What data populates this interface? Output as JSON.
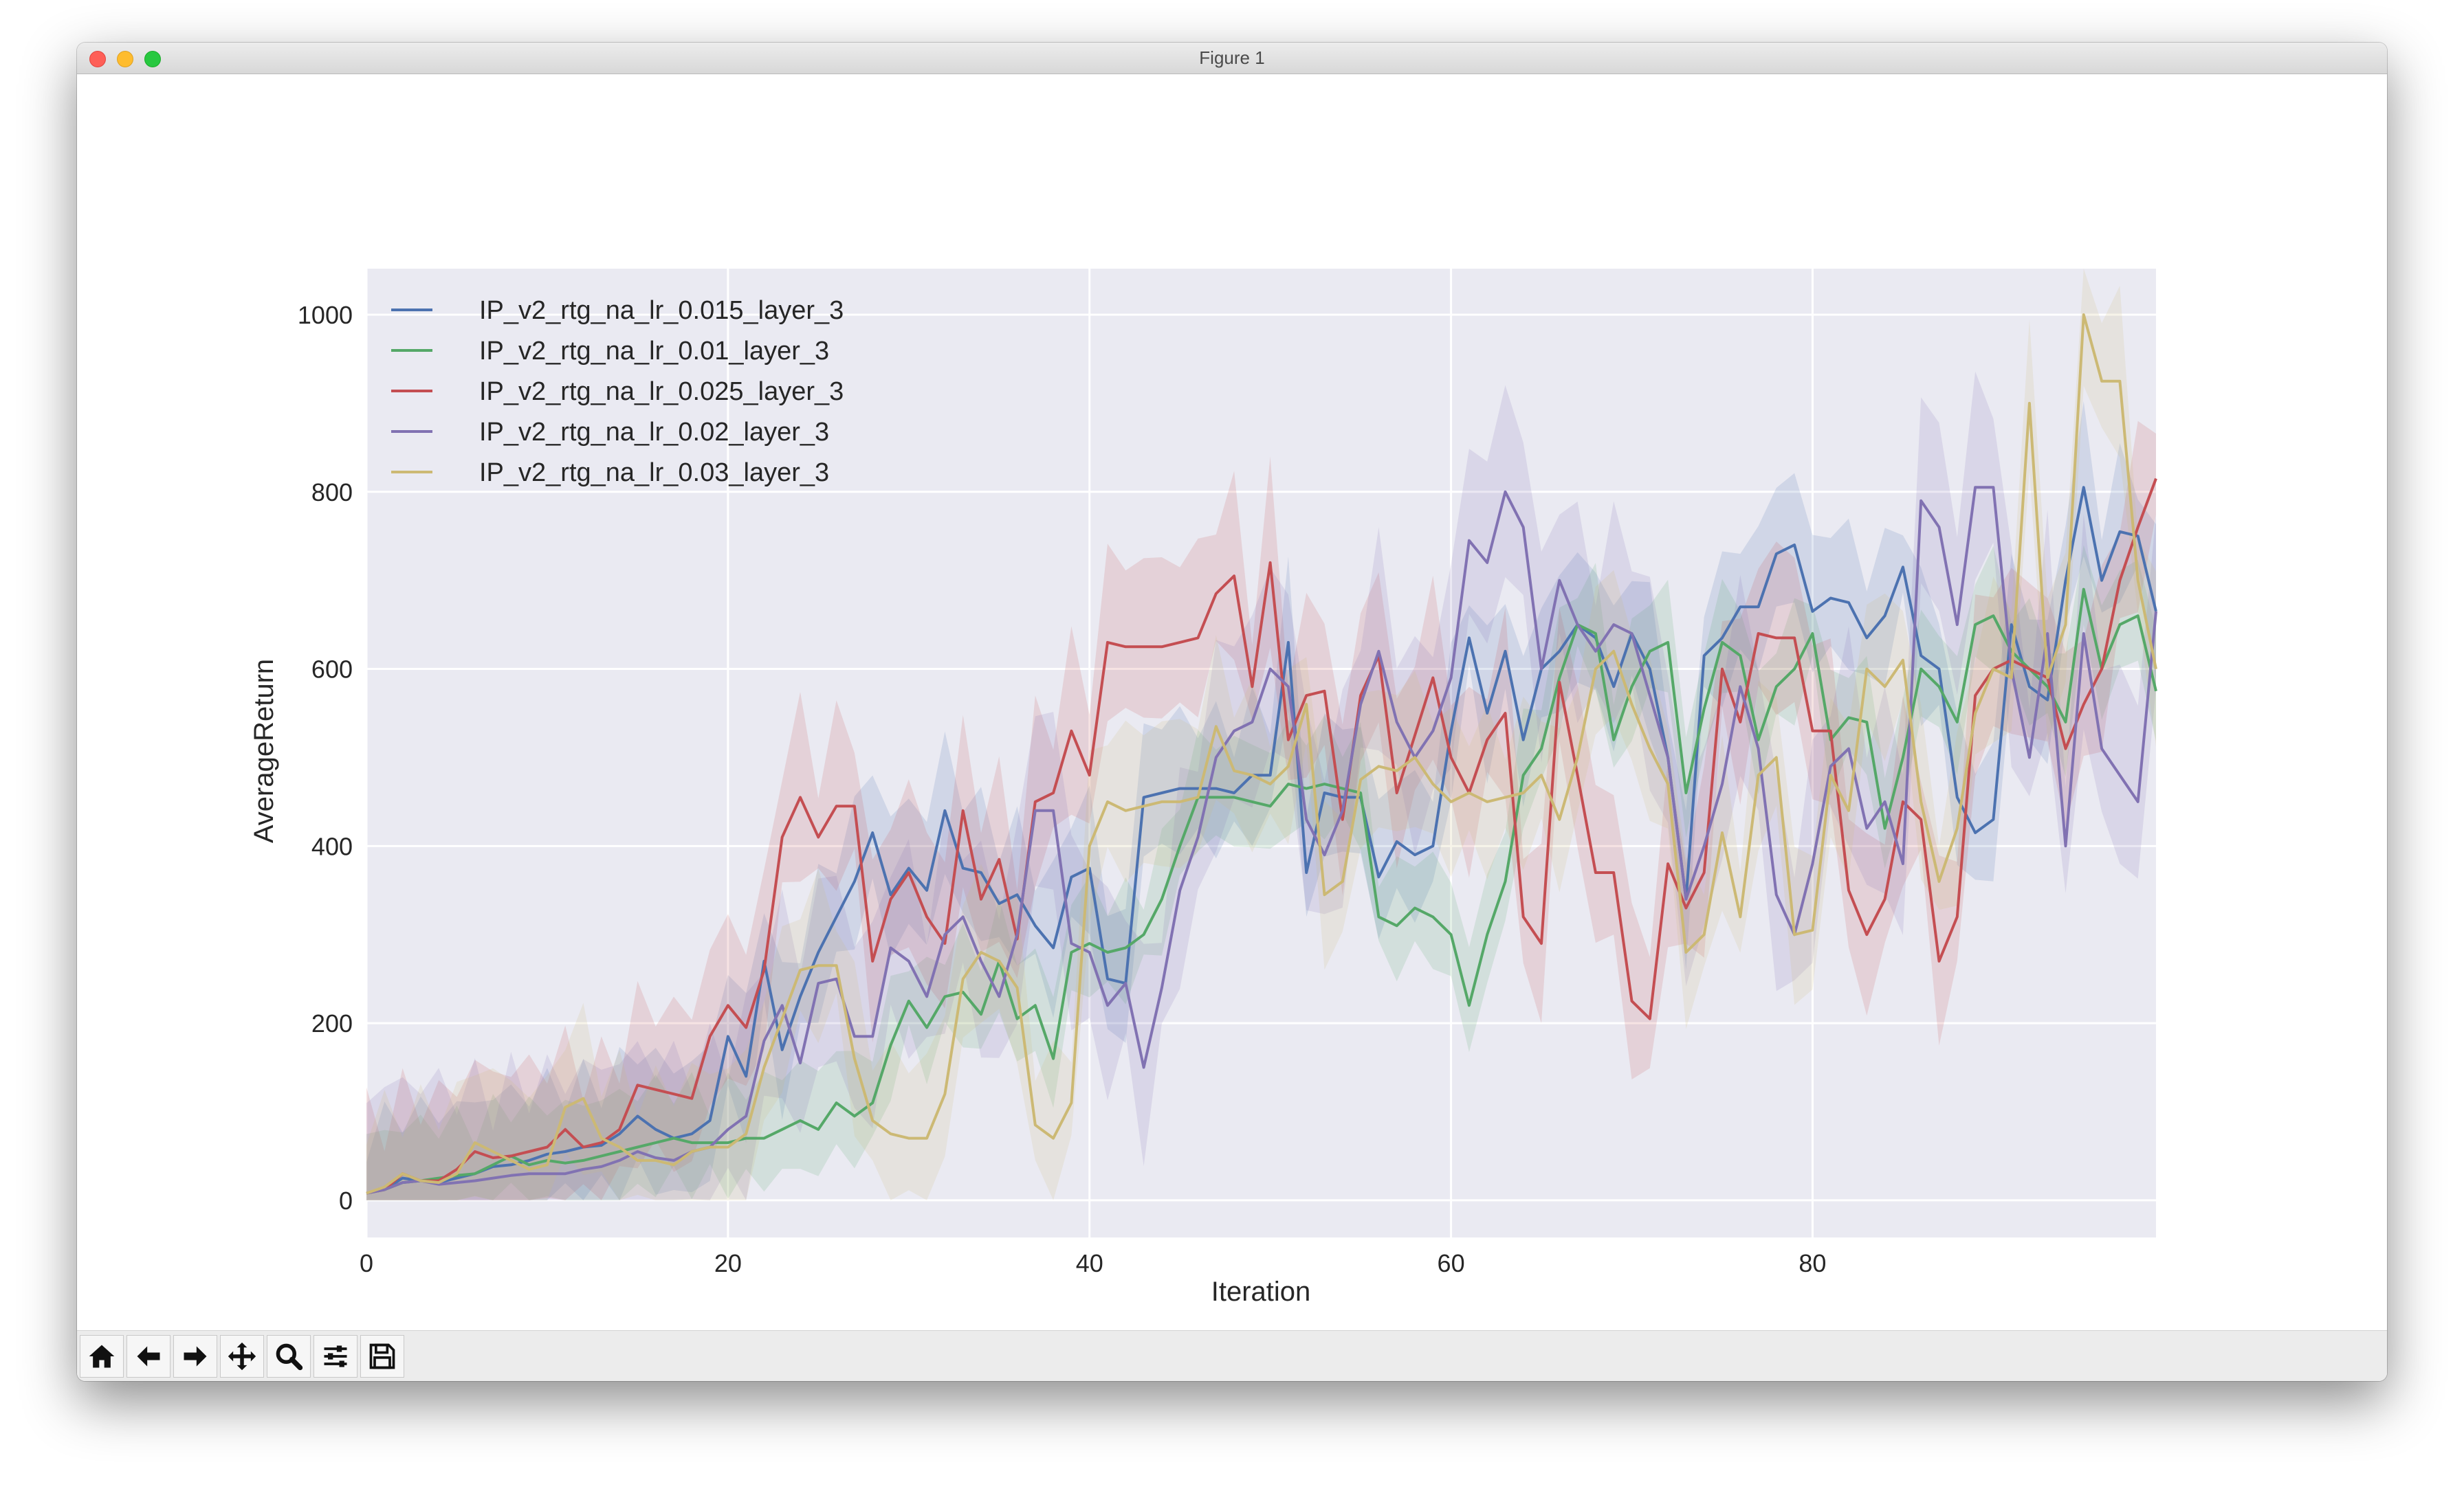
{
  "window": {
    "title": "Figure 1"
  },
  "toolbar": {
    "buttons": [
      {
        "name": "home-button",
        "icon": "home-icon"
      },
      {
        "name": "back-button",
        "icon": "arrow-left-icon"
      },
      {
        "name": "forward-button",
        "icon": "arrow-right-icon"
      },
      {
        "name": "pan-button",
        "icon": "move-icon"
      },
      {
        "name": "zoom-button",
        "icon": "magnifier-icon"
      },
      {
        "name": "configure-subplots-button",
        "icon": "sliders-icon"
      },
      {
        "name": "save-button",
        "icon": "floppy-disk-icon"
      }
    ]
  },
  "chart_data": {
    "type": "line",
    "xlabel": "Iteration",
    "ylabel": "AverageReturn",
    "xlim": [
      0,
      99
    ],
    "ylim": [
      -42,
      1052
    ],
    "xticks": [
      0,
      20,
      40,
      60,
      80
    ],
    "yticks": [
      0,
      200,
      400,
      600,
      800,
      1000
    ],
    "grid": true,
    "legend_position": "top-left",
    "shaded_band": "spread across runs (translucent band around each line)",
    "x": [
      0,
      1,
      2,
      3,
      4,
      5,
      6,
      7,
      8,
      9,
      10,
      11,
      12,
      13,
      14,
      15,
      16,
      17,
      18,
      19,
      20,
      21,
      22,
      23,
      24,
      25,
      26,
      27,
      28,
      29,
      30,
      31,
      32,
      33,
      34,
      35,
      36,
      37,
      38,
      39,
      40,
      41,
      42,
      43,
      44,
      45,
      46,
      47,
      48,
      49,
      50,
      51,
      52,
      53,
      54,
      55,
      56,
      57,
      58,
      59,
      60,
      61,
      62,
      63,
      64,
      65,
      66,
      67,
      68,
      69,
      70,
      71,
      72,
      73,
      74,
      75,
      76,
      77,
      78,
      79,
      80,
      81,
      82,
      83,
      84,
      85,
      86,
      87,
      88,
      89,
      90,
      91,
      92,
      93,
      94,
      95,
      96,
      97,
      98,
      99
    ],
    "series": [
      {
        "name": "IP_v2_rtg_na_lr_0.015_layer_3",
        "color": "#4c72b0",
        "spread": 100,
        "values": [
          8,
          12,
          25,
          22,
          20,
          25,
          30,
          38,
          40,
          45,
          52,
          55,
          60,
          62,
          75,
          95,
          80,
          70,
          75,
          90,
          185,
          140,
          270,
          170,
          230,
          280,
          320,
          360,
          415,
          345,
          375,
          350,
          440,
          375,
          370,
          335,
          345,
          310,
          285,
          365,
          375,
          250,
          245,
          455,
          460,
          465,
          465,
          465,
          460,
          480,
          480,
          630,
          370,
          460,
          455,
          455,
          365,
          405,
          390,
          400,
          530,
          635,
          550,
          620,
          520,
          600,
          620,
          650,
          635,
          580,
          640,
          600,
          500,
          340,
          615,
          635,
          670,
          670,
          730,
          740,
          665,
          680,
          675,
          635,
          660,
          715,
          615,
          600,
          455,
          415,
          430,
          650,
          580,
          565,
          700,
          805,
          700,
          755,
          750,
          665
        ]
      },
      {
        "name": "IP_v2_rtg_na_lr_0.01_layer_3",
        "color": "#55a868",
        "spread": 80,
        "values": [
          8,
          12,
          20,
          22,
          25,
          28,
          30,
          40,
          50,
          40,
          45,
          42,
          45,
          50,
          55,
          60,
          65,
          70,
          65,
          65,
          65,
          70,
          70,
          80,
          90,
          80,
          110,
          95,
          110,
          175,
          225,
          195,
          230,
          235,
          210,
          270,
          205,
          220,
          160,
          280,
          290,
          280,
          285,
          300,
          340,
          400,
          455,
          455,
          455,
          450,
          445,
          470,
          465,
          470,
          465,
          460,
          320,
          310,
          330,
          320,
          300,
          220,
          300,
          360,
          480,
          510,
          590,
          650,
          640,
          520,
          580,
          620,
          630,
          460,
          555,
          630,
          615,
          520,
          580,
          600,
          640,
          520,
          545,
          540,
          420,
          500,
          600,
          580,
          540,
          650,
          660,
          620,
          600,
          580,
          540,
          690,
          600,
          650,
          660,
          575
        ]
      },
      {
        "name": "IP_v2_rtg_na_lr_0.025_layer_3",
        "color": "#c44e52",
        "spread": 120,
        "values": [
          8,
          12,
          30,
          22,
          22,
          35,
          55,
          48,
          50,
          55,
          60,
          80,
          60,
          65,
          80,
          130,
          125,
          120,
          115,
          185,
          220,
          195,
          260,
          410,
          455,
          410,
          445,
          445,
          270,
          340,
          370,
          320,
          290,
          440,
          340,
          385,
          295,
          450,
          460,
          530,
          480,
          630,
          625,
          625,
          625,
          630,
          635,
          685,
          705,
          580,
          720,
          520,
          570,
          575,
          430,
          570,
          615,
          460,
          525,
          590,
          500,
          460,
          520,
          550,
          320,
          290,
          585,
          480,
          370,
          370,
          225,
          205,
          380,
          330,
          370,
          600,
          540,
          640,
          635,
          635,
          530,
          530,
          350,
          300,
          340,
          450,
          430,
          270,
          320,
          570,
          600,
          610,
          600,
          590,
          510,
          560,
          600,
          700,
          760,
          815
        ]
      },
      {
        "name": "IP_v2_rtg_na_lr_0.02_layer_3",
        "color": "#8172b2",
        "spread": 140,
        "values": [
          8,
          12,
          20,
          22,
          18,
          20,
          22,
          25,
          28,
          30,
          30,
          30,
          35,
          38,
          45,
          55,
          48,
          45,
          55,
          60,
          80,
          95,
          180,
          220,
          155,
          245,
          250,
          185,
          185,
          285,
          270,
          230,
          300,
          320,
          270,
          230,
          300,
          440,
          440,
          290,
          280,
          220,
          245,
          150,
          240,
          350,
          410,
          500,
          530,
          540,
          600,
          580,
          430,
          390,
          440,
          560,
          620,
          540,
          500,
          530,
          590,
          745,
          720,
          800,
          760,
          600,
          700,
          650,
          620,
          650,
          640,
          570,
          500,
          340,
          400,
          470,
          580,
          510,
          345,
          300,
          380,
          490,
          510,
          420,
          450,
          380,
          790,
          760,
          650,
          805,
          805,
          600,
          500,
          640,
          400,
          640,
          510,
          480,
          450,
          665
        ]
      },
      {
        "name": "IP_v2_rtg_na_lr_0.03_layer_3",
        "color": "#ccb974",
        "spread": 110,
        "values": [
          8,
          15,
          30,
          22,
          20,
          30,
          65,
          55,
          45,
          35,
          40,
          105,
          115,
          70,
          60,
          45,
          45,
          40,
          55,
          60,
          60,
          75,
          150,
          205,
          260,
          265,
          265,
          160,
          90,
          75,
          70,
          70,
          120,
          250,
          280,
          270,
          240,
          85,
          70,
          110,
          400,
          450,
          440,
          445,
          450,
          450,
          455,
          535,
          485,
          480,
          470,
          490,
          560,
          345,
          360,
          475,
          490,
          485,
          500,
          470,
          450,
          460,
          450,
          455,
          460,
          480,
          430,
          500,
          600,
          620,
          560,
          510,
          470,
          280,
          300,
          415,
          320,
          480,
          500,
          300,
          305,
          480,
          440,
          600,
          580,
          610,
          450,
          360,
          420,
          550,
          600,
          590,
          900,
          590,
          650,
          1000,
          925,
          925,
          700,
          600
        ]
      }
    ]
  }
}
